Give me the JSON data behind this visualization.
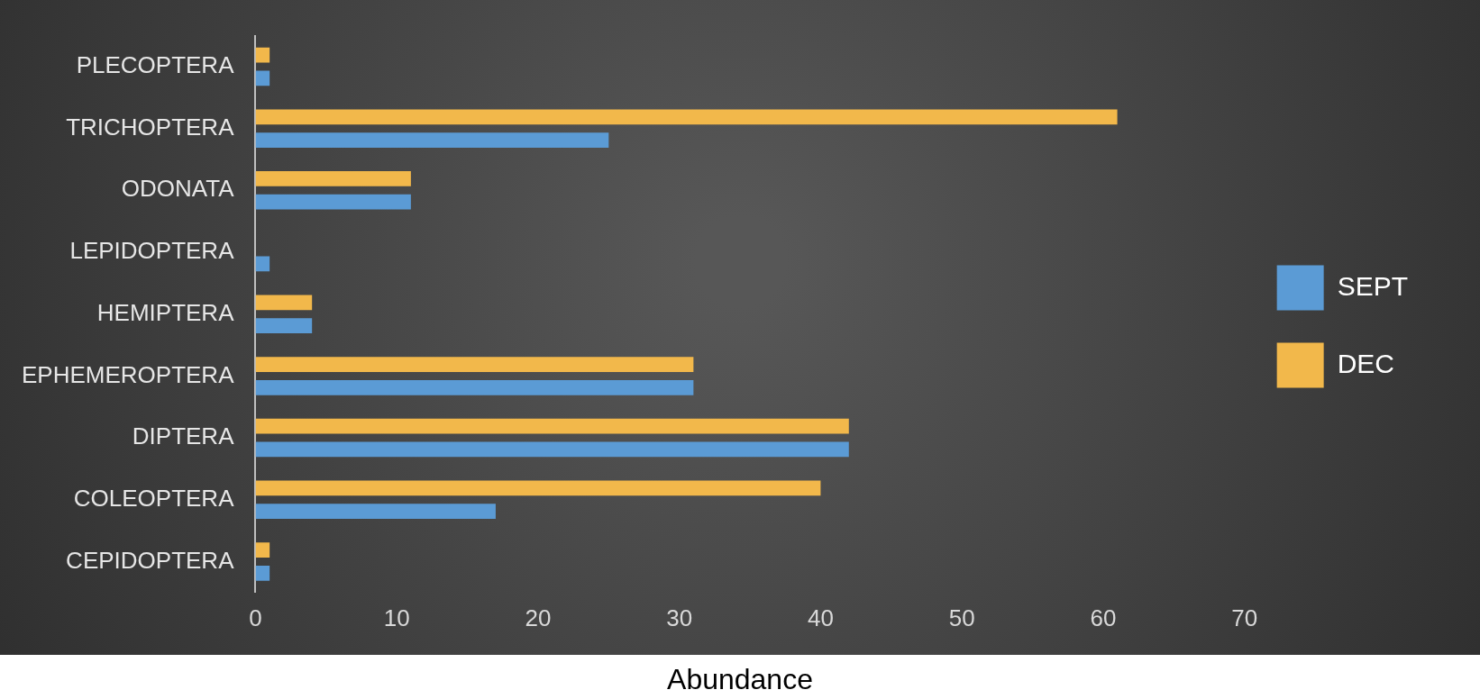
{
  "chart_data": {
    "type": "bar",
    "orientation": "horizontal",
    "xlabel": "Abundance",
    "categories": [
      "PLECOPTERA",
      "TRICHOPTERA",
      "ODONATA",
      "LEPIDOPTERA",
      "HEMIPTERA",
      "EPHEMEROPTERA",
      "DIPTERA",
      "COLEOPTERA",
      "CEPIDOPTERA"
    ],
    "series": [
      {
        "name": "SEPT",
        "color": "#5b9bd5",
        "values": [
          1,
          25,
          11,
          1,
          4,
          31,
          42,
          17,
          1
        ]
      },
      {
        "name": "DEC",
        "color": "#f2b84b",
        "values": [
          1,
          61,
          11,
          0,
          4,
          31,
          42,
          40,
          1
        ]
      }
    ],
    "xlim": [
      0,
      70
    ],
    "xticks": [
      0,
      10,
      20,
      30,
      40,
      50,
      60,
      70
    ],
    "grid": false,
    "legend": "right"
  }
}
